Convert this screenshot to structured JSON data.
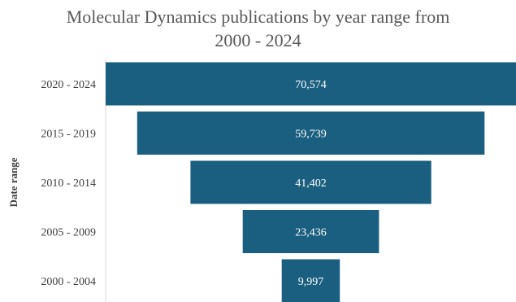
{
  "chart_data": {
    "type": "bar",
    "subtype": "funnel",
    "title": "Molecular Dynamics publications by year range from\n2000 - 2024",
    "ylabel": "Date range",
    "xlabel": "",
    "categories": [
      "2020 - 2024",
      "2015 - 2019",
      "2010 - 2014",
      "2005 - 2009",
      "2000 - 2004"
    ],
    "values": [
      70574,
      59739,
      41402,
      23436,
      9997
    ],
    "data_labels": [
      "70,574",
      "59,739",
      "41,402",
      "23,436",
      "9,997"
    ],
    "bar_color": "#1a5f7f",
    "label_color": "#ffffff",
    "grid": false,
    "legend": "none"
  }
}
